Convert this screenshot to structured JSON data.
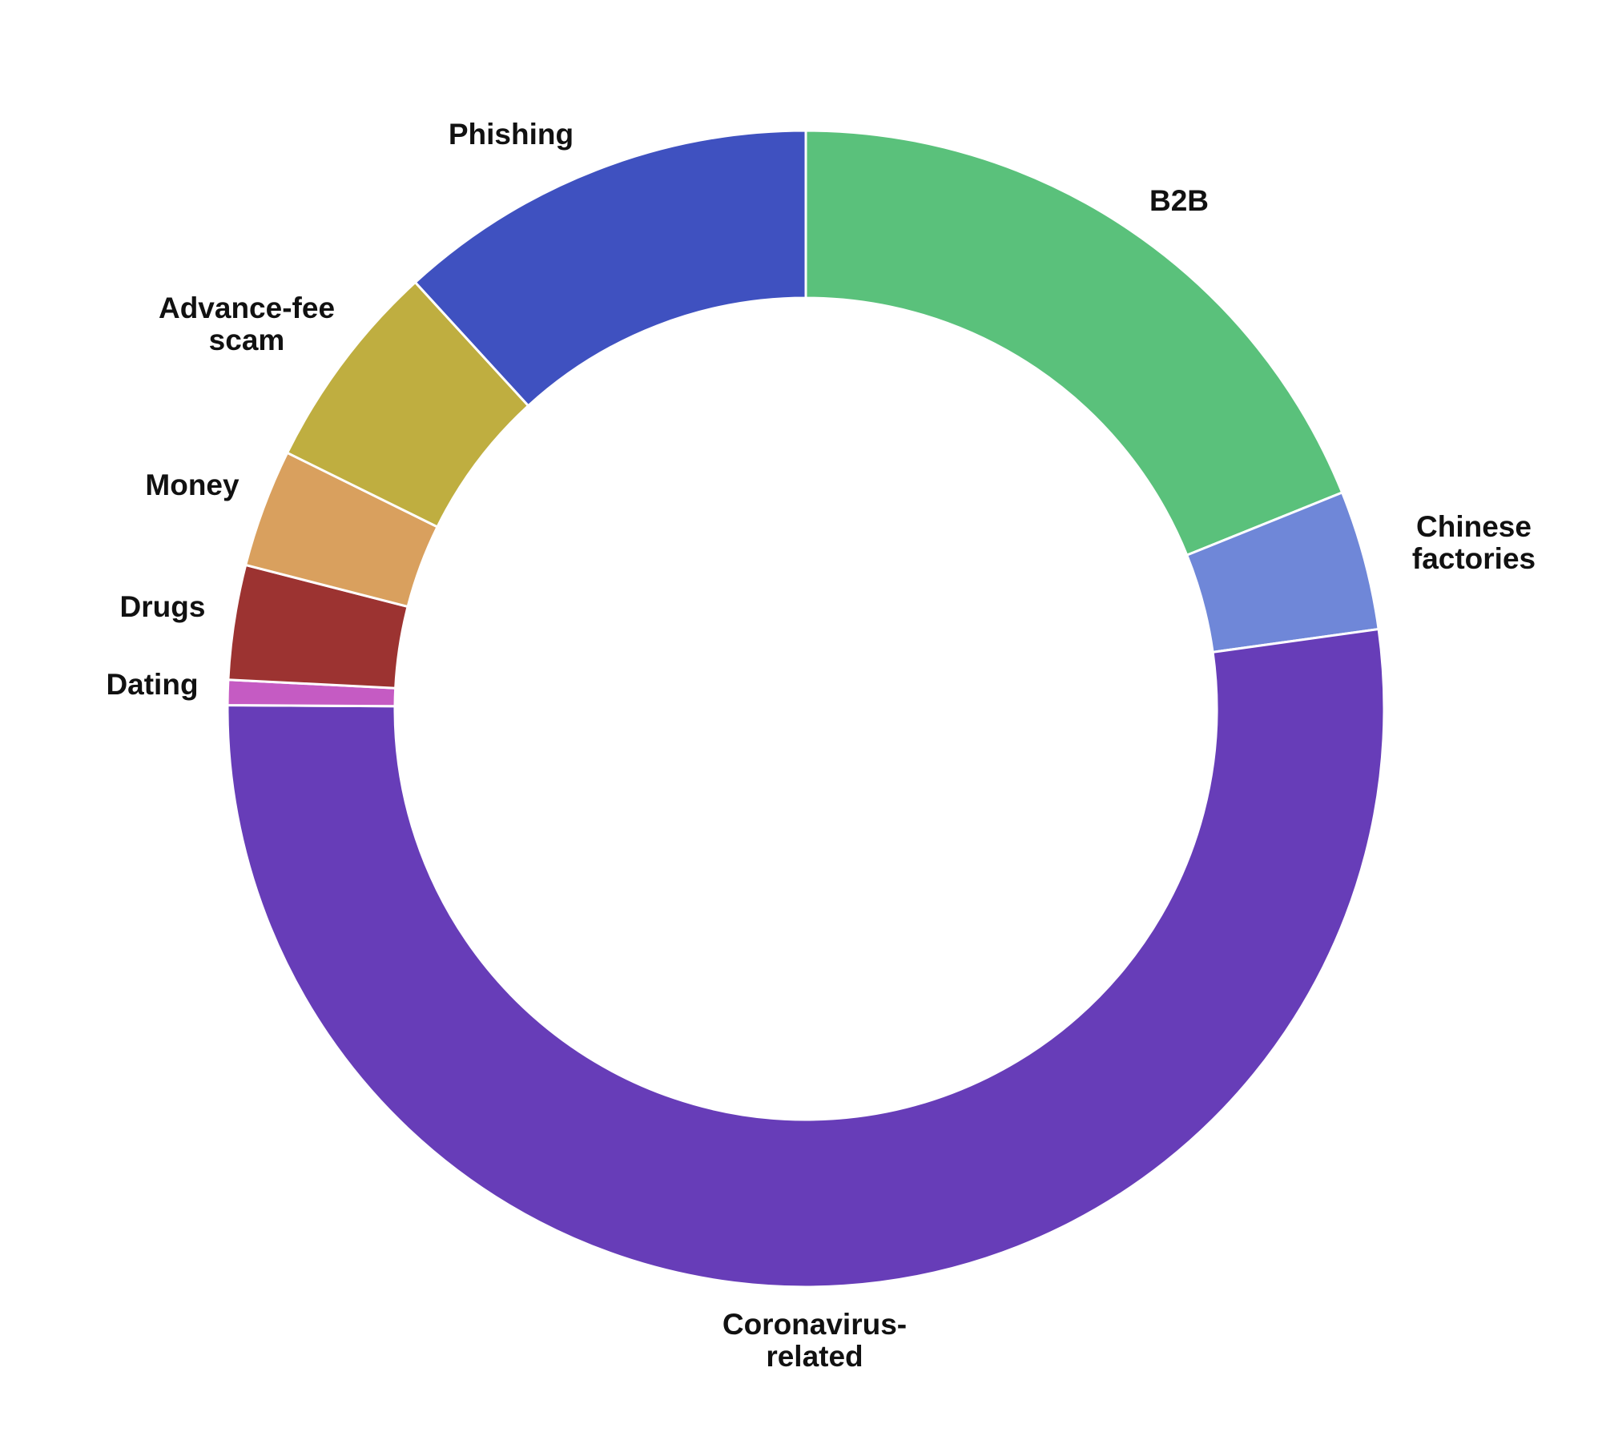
{
  "chart_data": {
    "type": "donut",
    "categories": [
      "B2B",
      "Chinese factories",
      "Coronavirus-related",
      "Dating",
      "Drugs",
      "Money",
      "Advance-fee scam",
      "Phishing"
    ],
    "values": [
      18.9,
      3.9,
      52.3,
      0.7,
      3.2,
      3.3,
      5.9,
      11.8
    ],
    "colors": [
      "#5ac17b",
      "#6f87d8",
      "#673db8",
      "#c55bc3",
      "#9c3331",
      "#d9a05e",
      "#bfae40",
      "#3f51c0"
    ]
  }
}
